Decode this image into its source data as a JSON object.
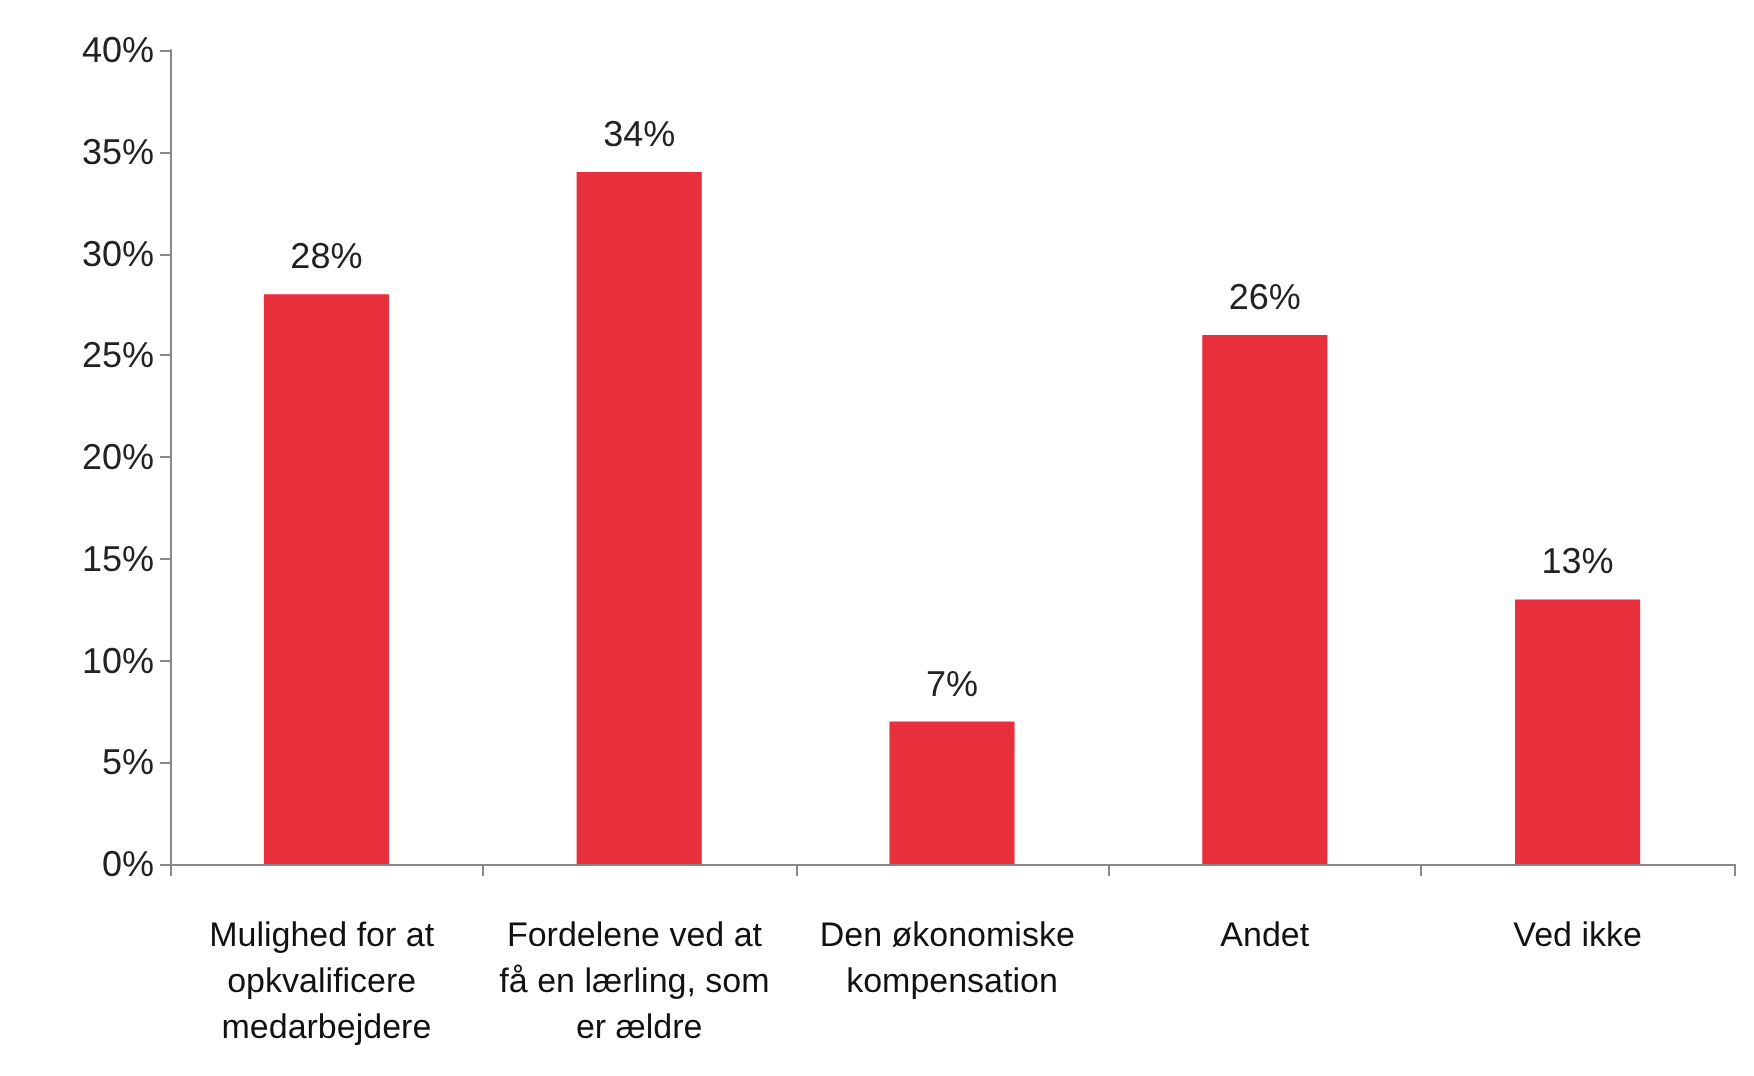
{
  "chart_data": {
    "type": "bar",
    "categories": [
      "Mulighed for at opkvalificere medarbejdere",
      "Fordelene ved at få en lærling, som er ældre",
      "Den økonomiske kompensation",
      "Andet",
      "Ved ikke"
    ],
    "values": [
      28,
      34,
      7,
      26,
      13
    ],
    "value_labels": [
      "28%",
      "34%",
      "7%",
      "26%",
      "13%"
    ],
    "color": "#e8303d",
    "ylim": [
      0,
      40
    ],
    "yticks": [
      {
        "value": 0,
        "label": "0%"
      },
      {
        "value": 5,
        "label": "5%"
      },
      {
        "value": 10,
        "label": "10%"
      },
      {
        "value": 15,
        "label": "15%"
      },
      {
        "value": 20,
        "label": "20%"
      },
      {
        "value": 25,
        "label": "25%"
      },
      {
        "value": 30,
        "label": "30%"
      },
      {
        "value": 35,
        "label": "35%"
      },
      {
        "value": 40,
        "label": "40%"
      }
    ],
    "grid": false
  }
}
